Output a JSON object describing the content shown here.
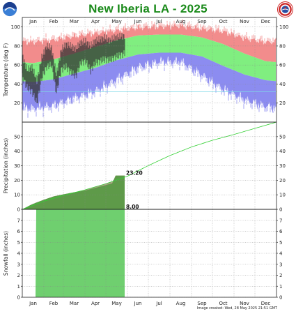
{
  "title": "New Iberia LA - 2025",
  "footer": "Image created: Wed, 28 May 2025 21:51 GMT",
  "logos": {
    "left": "noaa-logo-icon",
    "right": "nws-logo-icon"
  },
  "colors": {
    "title": "#1a8a1a",
    "normal_high_band": "#f08080",
    "normal_range_band": "#80ee80",
    "normal_low_band": "#8080ee",
    "record_high_band": "#f28c8c",
    "record_low_band": "#8c8cf0",
    "observed_temp": "#333333",
    "precip_observed": "#5a9a46",
    "precip_normal": "#b5a08a",
    "precip_normal_line": "#32d032",
    "snowfall_fill": "#6fcf6f",
    "freezing_line": "#7fd8e8"
  },
  "chart_data": [
    {
      "type": "area",
      "panel": "temperature",
      "ylabel": "Temperature (deg F)",
      "ylim": [
        0,
        110
      ],
      "yticks": [
        20,
        40,
        60,
        80,
        100
      ],
      "months": [
        "Jan",
        "Feb",
        "Mar",
        "Apr",
        "May",
        "Jun",
        "Jul",
        "Aug",
        "Sep",
        "Oct",
        "Nov",
        "Dec"
      ],
      "grid": true,
      "freezing_line_value": 32,
      "normal_high_by_month": [
        62,
        66,
        72,
        79,
        86,
        91,
        92,
        92,
        89,
        82,
        72,
        64
      ],
      "normal_low_by_month": [
        42,
        45,
        51,
        57,
        65,
        71,
        73,
        73,
        69,
        59,
        50,
        44
      ],
      "record_high_by_month": [
        84,
        86,
        90,
        93,
        96,
        99,
        100,
        101,
        98,
        95,
        88,
        84
      ],
      "record_low_by_month": [
        15,
        18,
        26,
        33,
        45,
        58,
        64,
        64,
        50,
        35,
        24,
        17
      ],
      "observed": {
        "x_dates": [
          "Jan 1",
          "Jan 8",
          "Jan 15",
          "Jan 22",
          "Jan 29",
          "Feb 5",
          "Feb 12",
          "Feb 19",
          "Feb 26",
          "Mar 5",
          "Mar 12",
          "Mar 19",
          "Mar 26",
          "Apr 2",
          "Apr 9",
          "Apr 16",
          "Apr 23",
          "Apr 30",
          "May 7",
          "May 14",
          "May 21",
          "May 28"
        ],
        "high": [
          70,
          55,
          58,
          44,
          68,
          80,
          78,
          50,
          76,
          82,
          80,
          77,
          84,
          85,
          80,
          86,
          87,
          89,
          86,
          89,
          90,
          91
        ],
        "low": [
          48,
          36,
          32,
          20,
          46,
          58,
          60,
          31,
          55,
          58,
          52,
          48,
          62,
          64,
          54,
          62,
          64,
          66,
          65,
          68,
          70,
          72
        ]
      }
    },
    {
      "type": "area",
      "panel": "precipitation",
      "ylabel": "Precipitation (inches)",
      "ylim": [
        0,
        60
      ],
      "yticks": [
        0,
        10,
        20,
        30,
        40,
        50
      ],
      "grid": true,
      "normal_cumulative_by_month_end": [
        5.6,
        9.6,
        13.4,
        17.6,
        22.8,
        30.1,
        37.0,
        42.9,
        47.5,
        51.5,
        55.7,
        60.0
      ],
      "observed_cumulative": {
        "x_dates": [
          "Jan 1",
          "Jan 15",
          "Feb 1",
          "Feb 15",
          "Mar 1",
          "Mar 15",
          "Apr 1",
          "Apr 15",
          "May 1",
          "May 10",
          "May 15",
          "May 28"
        ],
        "values": [
          0,
          3.5,
          6.6,
          8.9,
          10.3,
          11.6,
          12.9,
          14.7,
          16.7,
          17.9,
          23.2,
          23.2
        ]
      },
      "annotation": "23.20"
    },
    {
      "type": "area",
      "panel": "snowfall",
      "ylabel": "Snowfall (inches)",
      "ylim": [
        0,
        8
      ],
      "yticks": [
        0,
        1,
        2,
        3,
        4,
        5,
        6,
        7
      ],
      "grid": true,
      "observed_cumulative": {
        "x_dates": [
          "Jan 1",
          "Jan 20",
          "Jan 21",
          "May 28"
        ],
        "values": [
          0,
          0,
          8.0,
          8.0
        ]
      },
      "annotation": "8.00"
    }
  ]
}
